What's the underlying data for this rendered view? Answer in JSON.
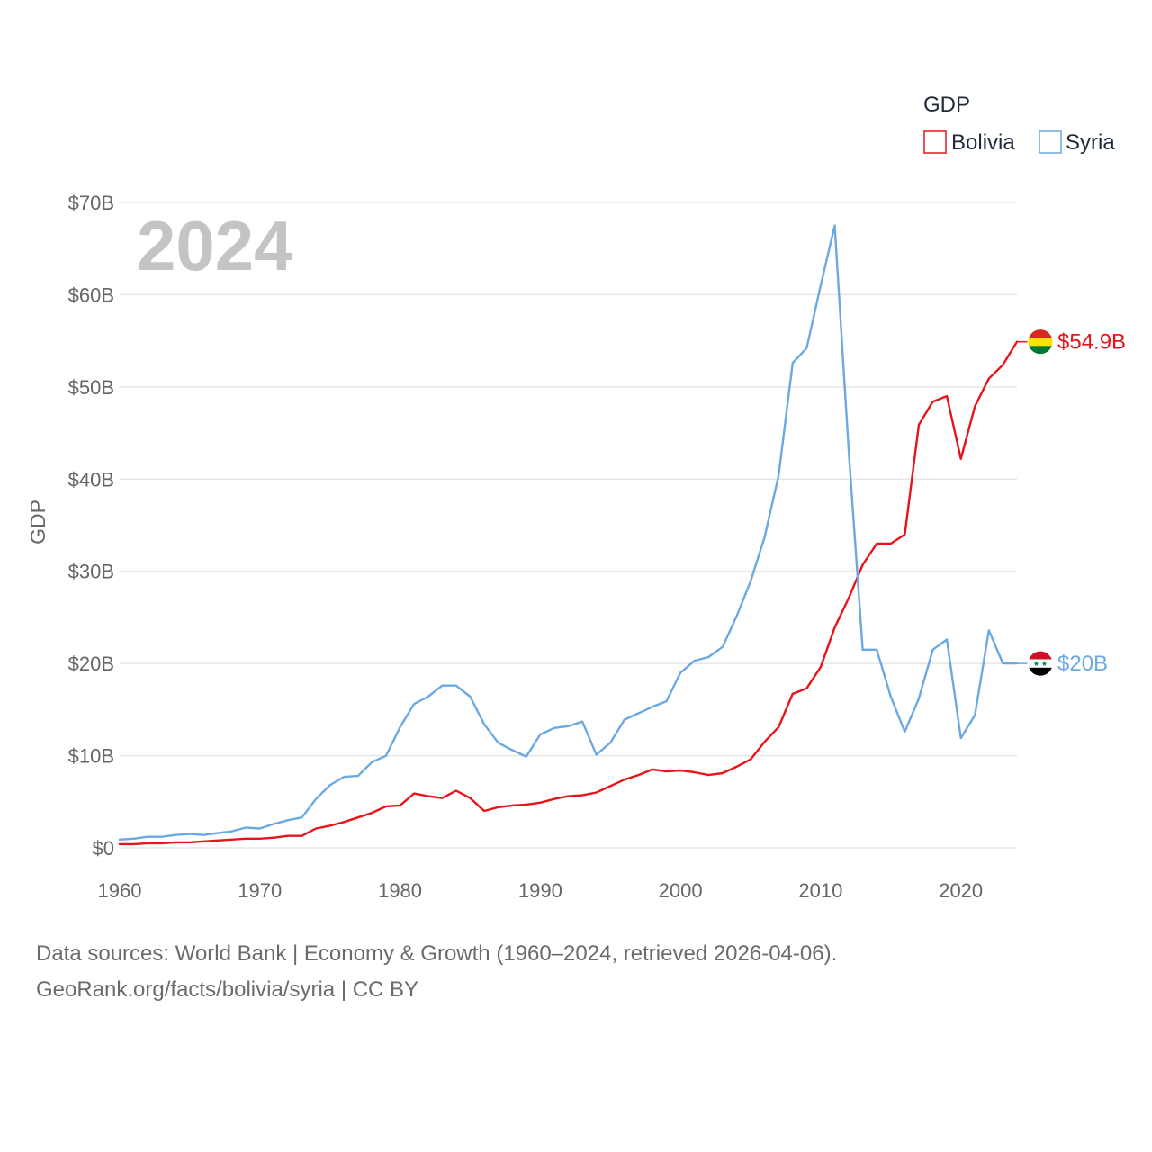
{
  "overlay_year": "2024",
  "footer": {
    "line1": "Data sources: World Bank | Economy & Growth (1960–2024, retrieved 2026-04-06).",
    "line2": "GeoRank.org/facts/bolivia/syria | CC BY"
  },
  "chart_data": {
    "type": "line",
    "title": "",
    "xlabel": "",
    "ylabel": "GDP",
    "legend_title": "GDP",
    "legend_position": "top-right",
    "xlim": [
      1960,
      2024
    ],
    "ylim": [
      0,
      70
    ],
    "x_ticks": [
      1960,
      1970,
      1980,
      1990,
      2000,
      2010,
      2020
    ],
    "y_ticks": [
      0,
      10,
      20,
      30,
      40,
      50,
      60,
      70
    ],
    "y_tick_labels": [
      "$0",
      "$10B",
      "$20B",
      "$30B",
      "$40B",
      "$50B",
      "$60B",
      "$70B"
    ],
    "grid": true,
    "units": "USD billions",
    "x": [
      1960,
      1961,
      1962,
      1963,
      1964,
      1965,
      1966,
      1967,
      1968,
      1969,
      1970,
      1971,
      1972,
      1973,
      1974,
      1975,
      1976,
      1977,
      1978,
      1979,
      1980,
      1981,
      1982,
      1983,
      1984,
      1985,
      1986,
      1987,
      1988,
      1989,
      1990,
      1991,
      1992,
      1993,
      1994,
      1995,
      1996,
      1997,
      1998,
      1999,
      2000,
      2001,
      2002,
      2003,
      2004,
      2005,
      2006,
      2007,
      2008,
      2009,
      2010,
      2011,
      2012,
      2013,
      2014,
      2015,
      2016,
      2017,
      2018,
      2019,
      2020,
      2021,
      2022,
      2023,
      2024
    ],
    "series": [
      {
        "name": "Bolivia",
        "color": "#e8141b",
        "end_label": "$54.9B",
        "flag_colors": [
          "#d52b1e",
          "#f9e300",
          "#007934"
        ],
        "values": [
          0.4,
          0.4,
          0.5,
          0.5,
          0.6,
          0.6,
          0.7,
          0.8,
          0.9,
          1.0,
          1.0,
          1.1,
          1.3,
          1.3,
          2.1,
          2.4,
          2.8,
          3.3,
          3.8,
          4.5,
          4.6,
          5.9,
          5.6,
          5.4,
          6.2,
          5.4,
          4.0,
          4.4,
          4.6,
          4.7,
          4.9,
          5.3,
          5.6,
          5.7,
          6.0,
          6.7,
          7.4,
          7.9,
          8.5,
          8.3,
          8.4,
          8.2,
          7.9,
          8.1,
          8.8,
          9.6,
          11.5,
          13.1,
          16.7,
          17.3,
          19.6,
          23.9,
          27.1,
          30.7,
          33.0,
          33.0,
          34.0,
          45.9,
          48.4,
          49.0,
          42.2,
          47.9,
          50.9,
          52.4,
          54.9
        ]
      },
      {
        "name": "Syria",
        "color": "#6ba9e2",
        "end_label": "$20B",
        "flag_colors": [
          "#ce1126",
          "#ffffff",
          "#000000"
        ],
        "values": [
          0.9,
          1.0,
          1.2,
          1.2,
          1.4,
          1.5,
          1.4,
          1.6,
          1.8,
          2.2,
          2.1,
          2.6,
          3.0,
          3.3,
          5.3,
          6.8,
          7.7,
          7.8,
          9.3,
          10.0,
          13.1,
          15.6,
          16.4,
          17.6,
          17.6,
          16.4,
          13.4,
          11.4,
          10.6,
          9.9,
          12.3,
          13.0,
          13.2,
          13.7,
          10.1,
          11.4,
          13.9,
          14.6,
          15.3,
          15.9,
          19.0,
          20.3,
          20.7,
          21.8,
          25.1,
          28.9,
          33.7,
          40.4,
          52.6,
          54.2,
          61.0,
          67.5,
          43.0,
          21.5,
          21.5,
          16.4,
          12.6,
          16.2,
          21.5,
          22.6,
          11.9,
          14.4,
          23.6,
          20.0,
          20.0
        ]
      }
    ]
  }
}
